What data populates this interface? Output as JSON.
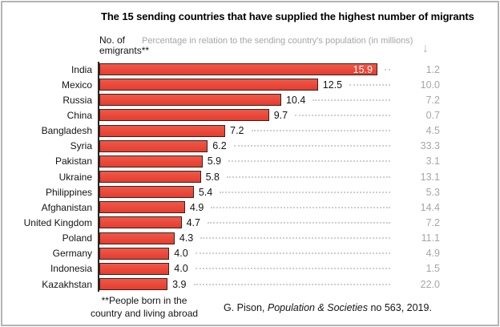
{
  "figure": {
    "title": "The 15 sending countries that have supplied the highest number of migrants",
    "left_axis_label": "No. of emigrants**",
    "top_note": "Percentage in relation to the sending country's population (in millions)",
    "arrow_icon": "↓",
    "footnote_lines": [
      "**People born in the",
      "country and living abroad"
    ],
    "source_prefix": "G. Pison, ",
    "source_italic": "Population & Societies",
    "source_suffix": " no 563, 2019."
  },
  "colors": {
    "bar_fill": "#e8453a",
    "bar_border": "#3a211a",
    "muted_text": "#a6a6a6",
    "leader_dots": "#cfcfcf",
    "frame_border": "#b4b4b4",
    "text": "#141414"
  },
  "chart_data": {
    "type": "bar",
    "orientation": "horizontal",
    "title": "The 15 sending countries that have supplied the highest number of migrants",
    "categories": [
      "India",
      "Mexico",
      "Russia",
      "China",
      "Bangladesh",
      "Syria",
      "Pakistan",
      "Ukraine",
      "Philippines",
      "Afghanistan",
      "United Kingdom",
      "Poland",
      "Germany",
      "Indonesia",
      "Kazakhstan"
    ],
    "series": [
      {
        "name": "No. of emigrants (millions)",
        "values": [
          15.9,
          12.5,
          10.4,
          9.7,
          7.2,
          6.2,
          5.9,
          5.8,
          5.4,
          4.9,
          4.7,
          4.3,
          4.0,
          4.0,
          3.9
        ]
      },
      {
        "name": "Percentage in relation to the sending country's population",
        "values": [
          1.2,
          10.0,
          7.2,
          0.7,
          4.5,
          33.3,
          3.1,
          13.1,
          5.3,
          14.4,
          7.2,
          11.1,
          4.9,
          1.5,
          22.0
        ]
      }
    ],
    "xlim": [
      0,
      16.7
    ],
    "value_labels": true,
    "legend": false,
    "grid": false
  }
}
